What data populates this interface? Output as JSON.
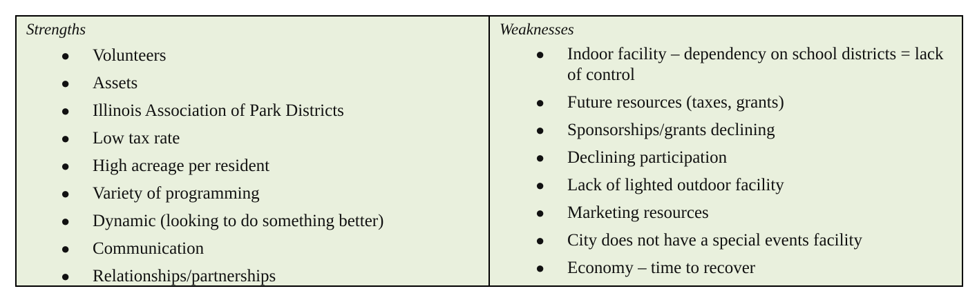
{
  "strengths": {
    "heading": "Strengths",
    "items": [
      "Volunteers",
      "Assets",
      "Illinois Association of Park Districts",
      "Low tax rate",
      "High acreage per resident",
      "Variety of programming",
      "Dynamic (looking to do something better)",
      "Communication",
      "Relationships/partnerships"
    ]
  },
  "weaknesses": {
    "heading": "Weaknesses",
    "items": [
      "Indoor facility – dependency on school districts = lack of control",
      "Future resources (taxes, grants)",
      "Sponsorships/grants declining",
      "Declining participation",
      "Lack of lighted outdoor facility",
      "Marketing resources",
      "City does not have a special events facility",
      "Economy – time to recover"
    ]
  },
  "bullet_glyph": "●",
  "background_color": "#e9f0dd"
}
